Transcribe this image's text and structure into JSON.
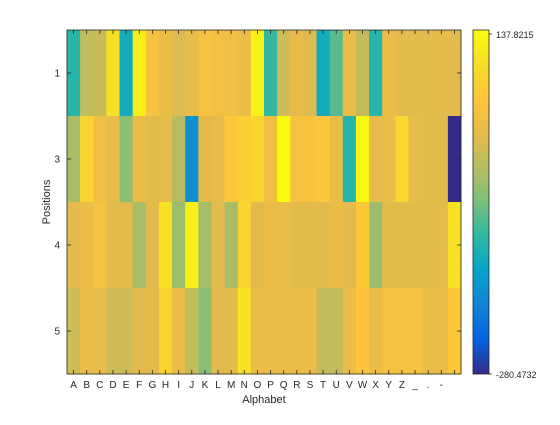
{
  "chart_data": {
    "type": "heatmap",
    "xlabel": "Alphabet",
    "ylabel": "Positions",
    "x_categories": [
      "A",
      "B",
      "C",
      "D",
      "E",
      "F",
      "G",
      "H",
      "I",
      "J",
      "K",
      "L",
      "M",
      "N",
      "O",
      "P",
      "Q",
      "R",
      "S",
      "T",
      "U",
      "V",
      "W",
      "X",
      "Y",
      "Z",
      "_",
      ".",
      "-",
      ""
    ],
    "y_categories": [
      "1",
      "3",
      "4",
      "5"
    ],
    "colorbar": {
      "min": -280.4732,
      "max": 137.8215,
      "min_label": "-280.4732",
      "max_label": "137.8215",
      "colormap": "parula"
    },
    "values": [
      [
        -120,
        -20,
        -15,
        100,
        -140,
        120,
        40,
        20,
        5,
        15,
        40,
        35,
        30,
        20,
        125,
        -110,
        -10,
        15,
        5,
        -140,
        -90,
        20,
        -20,
        -120,
        20,
        10,
        10,
        10,
        10,
        10
      ],
      [
        -40,
        80,
        30,
        15,
        -60,
        20,
        10,
        15,
        -30,
        -180,
        10,
        15,
        55,
        70,
        80,
        30,
        137.8215,
        40,
        45,
        55,
        20,
        -120,
        130,
        15,
        20,
        85,
        15,
        10,
        10,
        -280.4732
      ],
      [
        10,
        20,
        40,
        10,
        10,
        -40,
        10,
        100,
        -50,
        120,
        -40,
        10,
        -40,
        80,
        10,
        20,
        20,
        10,
        10,
        10,
        20,
        10,
        60,
        -50,
        10,
        10,
        10,
        10,
        10,
        100
      ],
      [
        -10,
        20,
        20,
        -10,
        -10,
        10,
        10,
        80,
        20,
        -20,
        -60,
        10,
        10,
        100,
        20,
        20,
        20,
        20,
        20,
        -20,
        -20,
        20,
        50,
        20,
        40,
        40,
        40,
        20,
        20,
        60
      ]
    ]
  }
}
